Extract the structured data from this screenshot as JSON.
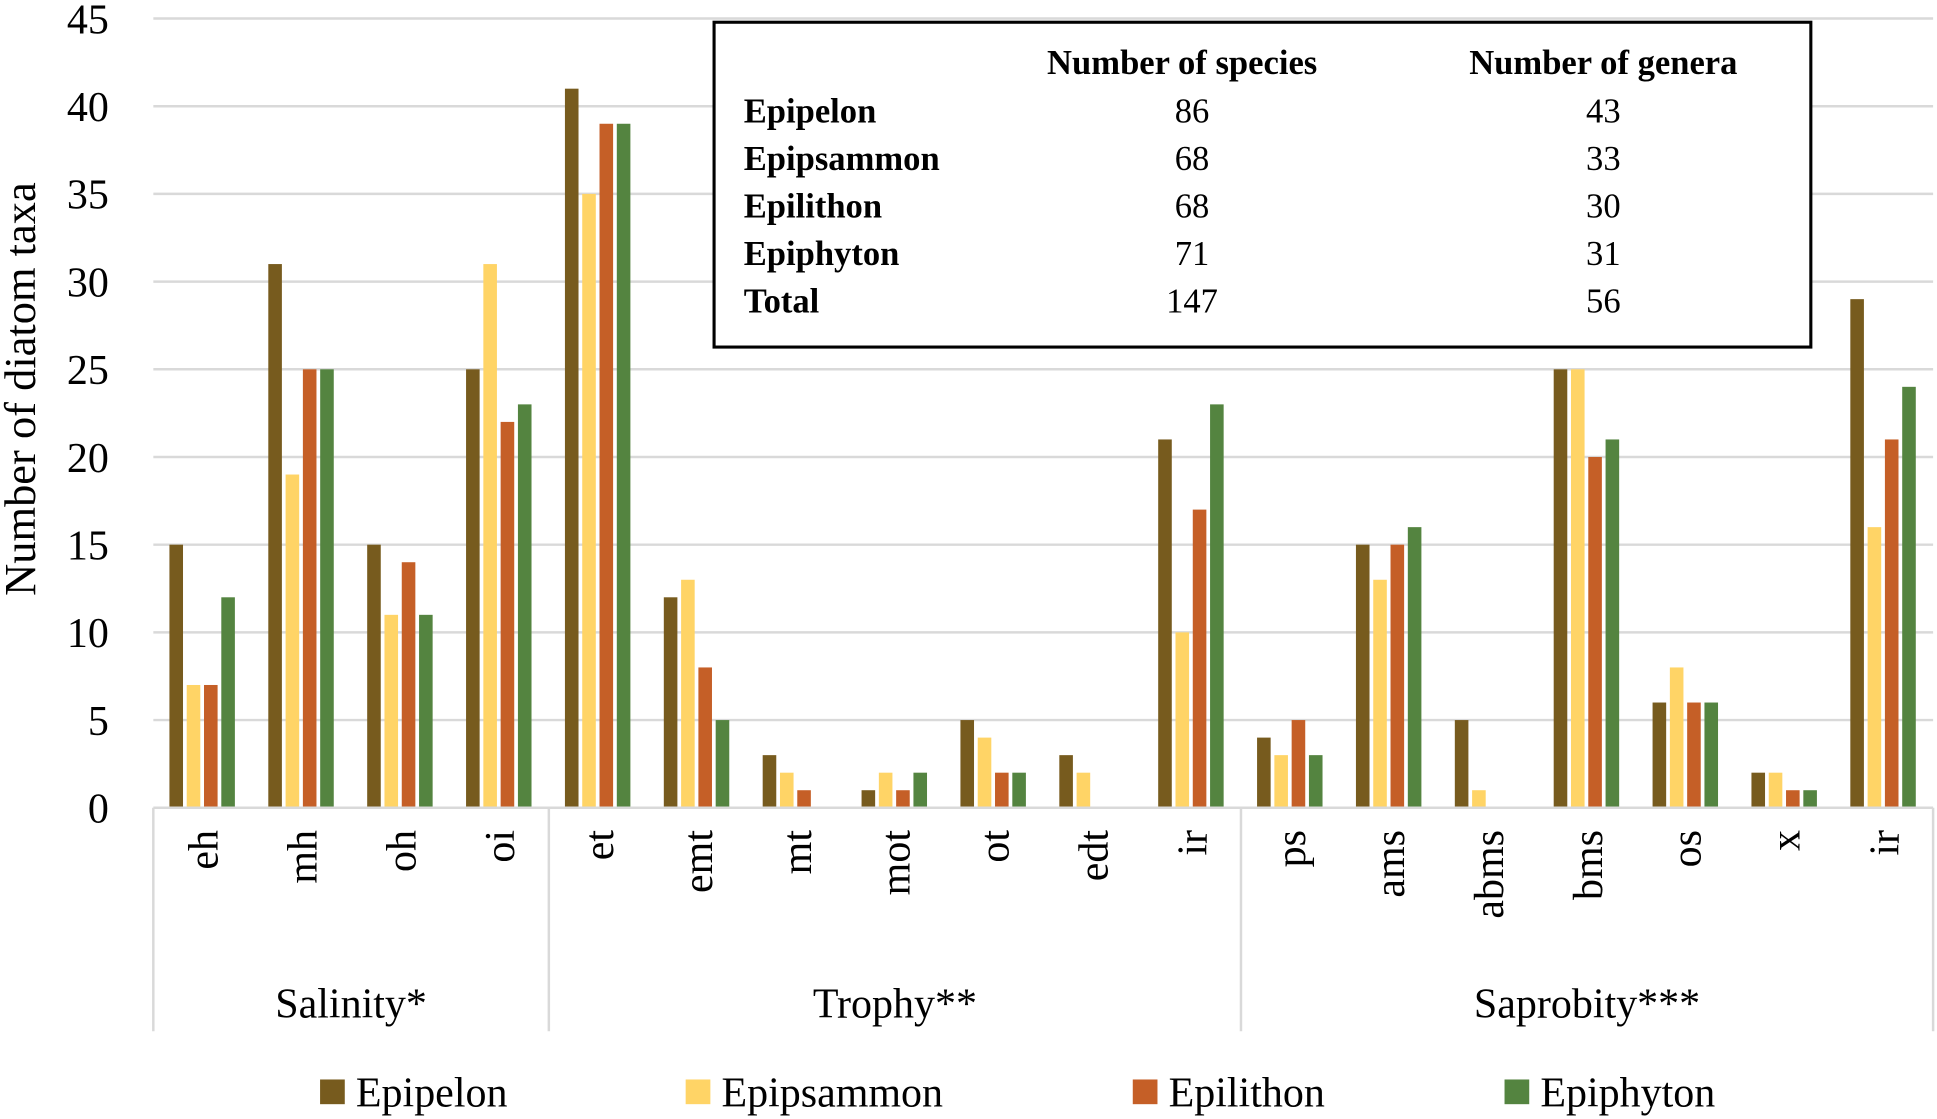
{
  "chart_data": {
    "type": "bar",
    "ylabel": "Number of diatom taxa",
    "ylim": [
      0,
      45
    ],
    "yticks": [
      0,
      5,
      10,
      15,
      20,
      25,
      30,
      35,
      40,
      45
    ],
    "grid": true,
    "legend_position": "bottom",
    "categories": [
      "eh",
      "mh",
      "oh",
      "oi",
      "et",
      "emt",
      "mt",
      "mot",
      "ot",
      "edt",
      "ir",
      "ps",
      "ams",
      "abms",
      "bms",
      "os",
      "x",
      "ir"
    ],
    "groups": [
      {
        "label": "Salinity*",
        "count": 4
      },
      {
        "label": "Trophy**",
        "count": 7
      },
      {
        "label": "Saprobity***",
        "count": 7
      }
    ],
    "series": [
      {
        "name": "Epipelon",
        "color": "#775B1E",
        "values": [
          15,
          31,
          15,
          25,
          41,
          12,
          3,
          1,
          5,
          3,
          21,
          4,
          15,
          5,
          25,
          6,
          2,
          29
        ]
      },
      {
        "name": "Epipsammon",
        "color": "#FFD466",
        "values": [
          7,
          19,
          11,
          31,
          35,
          13,
          2,
          2,
          4,
          2,
          10,
          3,
          13,
          1,
          25,
          8,
          2,
          16
        ]
      },
      {
        "name": "Epilithon",
        "color": "#C55F27",
        "values": [
          7,
          25,
          14,
          22,
          39,
          8,
          1,
          1,
          2,
          0,
          17,
          5,
          15,
          0,
          20,
          6,
          1,
          21
        ]
      },
      {
        "name": "Epiphyton",
        "color": "#548440",
        "values": [
          12,
          25,
          11,
          23,
          39,
          5,
          0,
          2,
          2,
          0,
          23,
          3,
          16,
          0,
          21,
          6,
          1,
          24
        ]
      }
    ],
    "inset_table": {
      "headers": [
        "",
        "Number  of species",
        "Number  of genera"
      ],
      "rows": [
        [
          "Epipelon",
          "86",
          "43"
        ],
        [
          "Epipsammon",
          "68",
          "33"
        ],
        [
          "Epilithon",
          "68",
          "30"
        ],
        [
          "Epiphyton",
          "71",
          "31"
        ],
        [
          "Total",
          "147",
          "56"
        ]
      ]
    }
  }
}
